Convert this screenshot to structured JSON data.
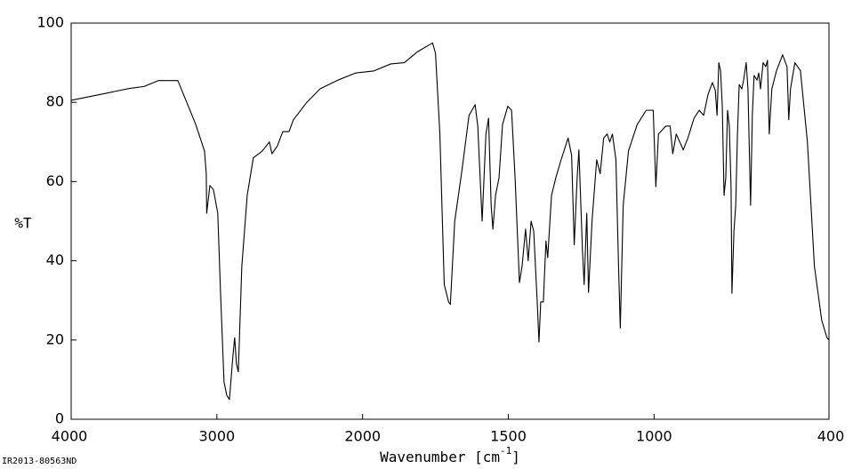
{
  "chart_data": {
    "type": "line",
    "ylabel": "%T",
    "xlabel": [
      "Wavenumber [cm",
      "-1",
      "]"
    ],
    "note": "IR2013-80563ND",
    "xlim": [
      4000,
      400
    ],
    "xscale_segments": [
      [
        4000,
        2000,
        1
      ],
      [
        2000,
        400,
        2
      ]
    ],
    "xticks": [
      4000,
      3000,
      2000,
      1500,
      1000,
      400
    ],
    "ylim": [
      0,
      100
    ],
    "yticks": [
      0,
      20,
      40,
      60,
      80,
      100
    ],
    "grid": false,
    "series": [
      {
        "color": "#000000",
        "x": [
          4000,
          3800,
          3600,
          3500,
          3400,
          3300,
          3268,
          3146,
          3085,
          3073,
          3070,
          3048,
          3024,
          2994,
          2975,
          2951,
          2932,
          2914,
          2890,
          2878,
          2866,
          2853,
          2829,
          2792,
          2750,
          2689,
          2640,
          2622,
          2585,
          2548,
          2505,
          2475,
          2383,
          2292,
          2170,
          2049,
          1963,
          1903,
          1857,
          1811,
          1760,
          1750,
          1735,
          1720,
          1705,
          1699,
          1684,
          1659,
          1635,
          1614,
          1605,
          1590,
          1577,
          1568,
          1559,
          1553,
          1544,
          1532,
          1520,
          1502,
          1489,
          1477,
          1462,
          1453,
          1441,
          1432,
          1422,
          1413,
          1401,
          1395,
          1389,
          1380,
          1371,
          1365,
          1352,
          1337,
          1319,
          1295,
          1283,
          1274,
          1264,
          1258,
          1246,
          1240,
          1231,
          1225,
          1213,
          1197,
          1185,
          1173,
          1161,
          1152,
          1143,
          1131,
          1122,
          1116,
          1106,
          1088,
          1058,
          1027,
          1003,
          994,
          985,
          960,
          945,
          936,
          924,
          912,
          900,
          884,
          863,
          845,
          830,
          815,
          800,
          790,
          784,
          778,
          772,
          766,
          760,
          754,
          748,
          742,
          736,
          733,
          726,
          720,
          714,
          708,
          699,
          693,
          684,
          678,
          669,
          663,
          657,
          647,
          641,
          635,
          626,
          617,
          611,
          605,
          596,
          580,
          559,
          544,
          538,
          532,
          517,
          498,
          474,
          450,
          425,
          407,
          400
        ],
        "values": [
          80.5,
          82,
          83.5,
          84,
          85.5,
          85.5,
          85.5,
          74.5,
          67.7,
          62,
          52,
          59,
          58,
          52,
          32,
          9.4,
          6,
          5,
          16,
          20.6,
          14,
          12,
          38.6,
          56.5,
          66,
          67.7,
          70,
          67,
          69,
          72.6,
          72.6,
          75.6,
          80,
          83.4,
          85.6,
          87.4,
          87.9,
          89.7,
          90,
          92.8,
          95,
          92.4,
          72,
          34,
          29.6,
          29,
          50,
          63,
          76.7,
          79.4,
          74,
          50,
          72,
          76,
          54,
          48,
          56.5,
          61,
          74.4,
          79,
          78,
          61,
          34.5,
          38.6,
          48,
          40,
          50,
          47.5,
          29.6,
          19.5,
          29.6,
          29.6,
          45,
          40.8,
          56.5,
          61,
          65.5,
          71,
          66.6,
          44,
          61,
          68,
          43,
          34,
          52,
          32,
          50,
          65.5,
          62,
          71,
          72,
          70,
          72,
          65.5,
          38.6,
          23,
          54,
          67.7,
          74.4,
          78,
          78,
          58.7,
          72,
          74,
          74,
          67,
          72,
          70,
          68,
          71,
          76,
          78,
          76.7,
          82,
          85,
          83,
          76.7,
          90,
          88,
          79,
          56.5,
          61,
          78,
          74,
          58.7,
          31.8,
          47.5,
          54,
          72,
          84.5,
          83.4,
          85.6,
          90,
          83.4,
          54,
          76.7,
          86.8,
          85.6,
          87.4,
          83.4,
          90,
          89,
          90.6,
          72,
          83.4,
          88,
          92,
          89,
          75.6,
          83.4,
          90,
          88,
          70,
          38.6,
          25,
          20.6,
          20
        ]
      }
    ]
  }
}
